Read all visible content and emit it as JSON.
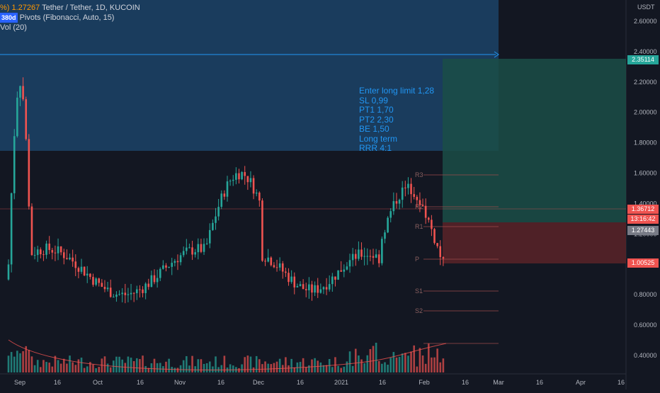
{
  "symbol": {
    "title": "Tether / Tether, 1D, KUCOIN",
    "title_prefix": "%) 1.27267",
    "indicator": "Pivots (Fibonacci, Auto, 15)",
    "indicator_badge": "380d",
    "volume": "Vol (20)"
  },
  "annotation_lines": [
    "Enter long limit 1,28",
    "SL 0,99",
    "PT1 1,70",
    "PT2 2,30",
    "BE 1,50",
    "Long term",
    "RRR 4:1"
  ],
  "axis": {
    "currency": "USDT",
    "price_ticks": [
      "2.60000",
      "2.40000",
      "2.20000",
      "2.00000",
      "1.80000",
      "1.60000",
      "1.40000",
      "1.20000",
      "1.00000",
      "0.80000",
      "0.60000",
      "0.40000"
    ],
    "time_ticks": [
      "Sep",
      "16",
      "Oct",
      "16",
      "Nov",
      "16",
      "Dec",
      "16",
      "2021",
      "16",
      "Feb",
      "16",
      "Mar",
      "16",
      "Apr",
      "16"
    ]
  },
  "price_tags": [
    {
      "label": "2.35114",
      "color": "#26a69a"
    },
    {
      "label": "1.36712",
      "color": "#ef5350"
    },
    {
      "label": "13:16:42",
      "color": "#ef5350"
    },
    {
      "label": "1.27443",
      "color": "#787b86"
    },
    {
      "label": "1.00525",
      "color": "#ef5350"
    }
  ],
  "pivots": [
    "R3",
    "R2",
    "R1",
    "P",
    "S1",
    "S2"
  ],
  "colors": {
    "background": "#131722",
    "up": "#26a69a",
    "down": "#ef5350",
    "box": "#1e4a72",
    "annotation": "#2196f3"
  }
}
